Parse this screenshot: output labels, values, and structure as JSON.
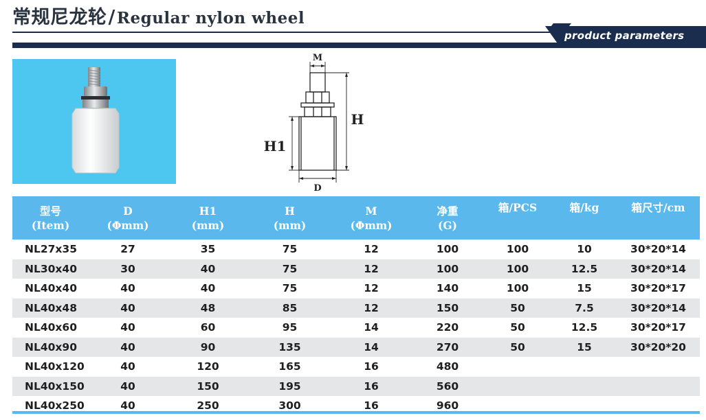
{
  "header": {
    "title_cn": "常规尼龙轮",
    "separator": "/",
    "title_en": "Regular nylon wheel",
    "tag": "product  parameters"
  },
  "colors": {
    "navy": "#1b2d4f",
    "table_header": "#5bb8ec",
    "photo_bg": "#4ec7f0",
    "row_alt": "#e4e6e8"
  },
  "drawing": {
    "label_m": "M",
    "label_h": "H",
    "label_h1": "H1",
    "label_d": "D"
  },
  "table": {
    "headers": [
      [
        "型号",
        "(Item)"
      ],
      [
        "D",
        "(Φmm)"
      ],
      [
        "H1",
        "(mm)"
      ],
      [
        "H",
        "(mm)"
      ],
      [
        "M",
        "(Φmm)"
      ],
      [
        "净重",
        "(G)"
      ],
      [
        "箱/PCS",
        ""
      ],
      [
        "箱/kg",
        ""
      ],
      [
        "箱尺寸/cm",
        ""
      ]
    ],
    "rows": [
      [
        "NL27x35",
        "27",
        "35",
        "75",
        "12",
        "100",
        "100",
        "10",
        "30*20*14"
      ],
      [
        "NL30x40",
        "30",
        "40",
        "75",
        "12",
        "100",
        "100",
        "12.5",
        "30*20*14"
      ],
      [
        "NL40x40",
        "40",
        "40",
        "75",
        "12",
        "140",
        "100",
        "15",
        "30*20*17"
      ],
      [
        "NL40x48",
        "40",
        "48",
        "85",
        "12",
        "150",
        "50",
        "7.5",
        "30*20*14"
      ],
      [
        "NL40x60",
        "40",
        "60",
        "95",
        "14",
        "220",
        "50",
        "12.5",
        "30*20*17"
      ],
      [
        "NL40x90",
        "40",
        "90",
        "135",
        "14",
        "270",
        "50",
        "15",
        "30*20*20"
      ],
      [
        "NL40x120",
        "40",
        "120",
        "165",
        "16",
        "480",
        "",
        "",
        ""
      ],
      [
        "NL40x150",
        "40",
        "150",
        "195",
        "16",
        "560",
        "",
        "",
        ""
      ],
      [
        "NL40x250",
        "40",
        "250",
        "300",
        "16",
        "960",
        "",
        "",
        ""
      ]
    ]
  }
}
